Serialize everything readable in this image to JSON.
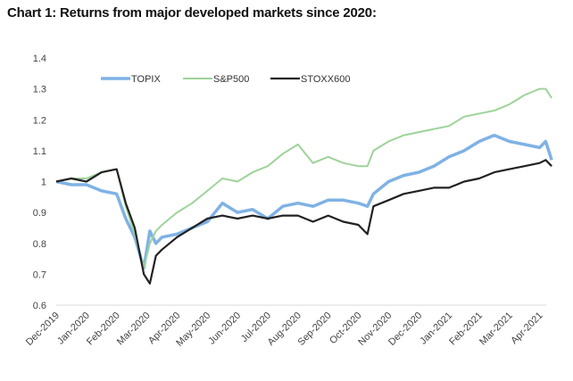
{
  "chart_data": {
    "type": "line",
    "title": "Chart 1: Returns from major developed markets since 2020:",
    "xlabel": "",
    "ylabel": "",
    "ylim": [
      0.6,
      1.4
    ],
    "yticks": [
      0.6,
      0.7,
      0.8,
      0.9,
      1,
      1.1,
      1.2,
      1.3,
      1.4
    ],
    "ytick_labels": [
      "0.6",
      "0.7",
      "0.8",
      "0.9",
      "1",
      "1.1",
      "1.2",
      "1.3",
      "1.4"
    ],
    "xlim_months": [
      0,
      16.4
    ],
    "x_tick_labels": [
      "Dec-2019",
      "Jan-2020",
      "Feb-2020",
      "Mar-2020",
      "Apr-2020",
      "May-2020",
      "Jun-2020",
      "Jul-2020",
      "Aug-2020",
      "Sep-2020",
      "Oct-2020",
      "Nov-2020",
      "Dec-2020",
      "Jan-2021",
      "Feb-2021",
      "Mar-2021",
      "Apr-2021"
    ],
    "grid": false,
    "legend_position": "top-left",
    "x": [
      0,
      0.5,
      1,
      1.5,
      2,
      2.3,
      2.6,
      2.9,
      3.1,
      3.3,
      3.5,
      4,
      4.5,
      5,
      5.5,
      6,
      6.5,
      7,
      7.5,
      8,
      8.5,
      9,
      9.5,
      10,
      10.3,
      10.5,
      11,
      11.5,
      12,
      12.5,
      13,
      13.5,
      14,
      14.5,
      15,
      15.5,
      16,
      16.2,
      16.4
    ],
    "series": [
      {
        "name": "TOPIX",
        "color": "#7FB2E5",
        "values": [
          1.0,
          0.99,
          0.99,
          0.97,
          0.96,
          0.88,
          0.82,
          0.72,
          0.84,
          0.8,
          0.82,
          0.83,
          0.85,
          0.87,
          0.93,
          0.9,
          0.91,
          0.88,
          0.92,
          0.93,
          0.92,
          0.94,
          0.94,
          0.93,
          0.92,
          0.96,
          1.0,
          1.02,
          1.03,
          1.05,
          1.08,
          1.1,
          1.13,
          1.15,
          1.13,
          1.12,
          1.11,
          1.13,
          1.07
        ]
      },
      {
        "name": "S&P500",
        "color": "#9ED39A",
        "values": [
          1.0,
          1.01,
          1.01,
          1.03,
          1.04,
          0.92,
          0.83,
          0.72,
          0.8,
          0.84,
          0.86,
          0.9,
          0.93,
          0.97,
          1.01,
          1.0,
          1.03,
          1.05,
          1.09,
          1.12,
          1.06,
          1.08,
          1.06,
          1.05,
          1.05,
          1.1,
          1.13,
          1.15,
          1.16,
          1.17,
          1.18,
          1.21,
          1.22,
          1.23,
          1.25,
          1.28,
          1.3,
          1.3,
          1.27
        ]
      },
      {
        "name": "STOXX600",
        "color": "#222222",
        "values": [
          1.0,
          1.01,
          1.0,
          1.03,
          1.04,
          0.93,
          0.85,
          0.7,
          0.67,
          0.76,
          0.78,
          0.82,
          0.85,
          0.88,
          0.89,
          0.88,
          0.89,
          0.88,
          0.89,
          0.89,
          0.87,
          0.89,
          0.87,
          0.86,
          0.83,
          0.92,
          0.94,
          0.96,
          0.97,
          0.98,
          0.98,
          1.0,
          1.01,
          1.03,
          1.04,
          1.05,
          1.06,
          1.07,
          1.05
        ]
      }
    ]
  }
}
